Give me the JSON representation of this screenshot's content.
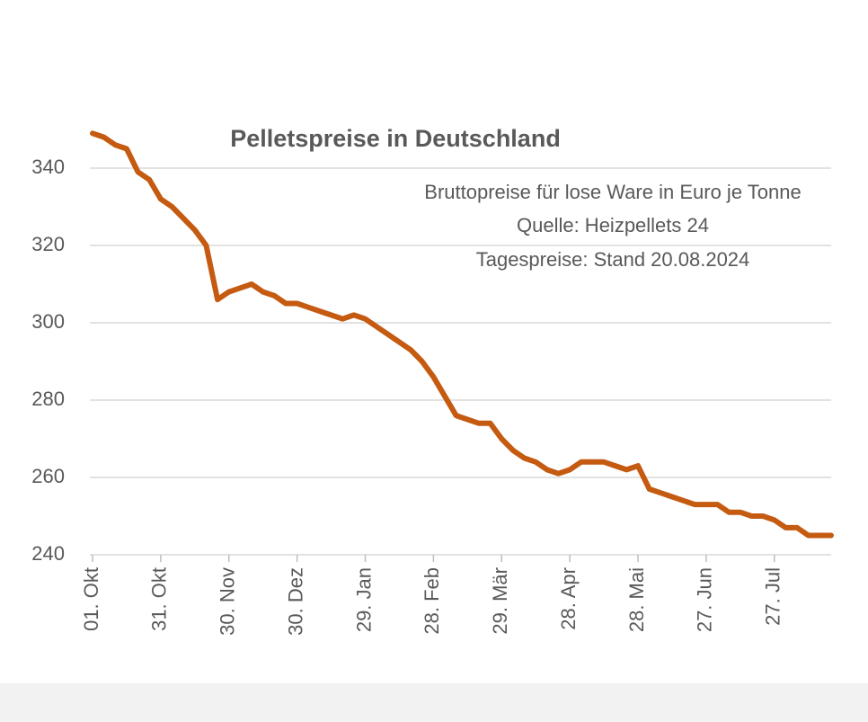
{
  "chart_data": {
    "type": "line",
    "title": "Pelletspreise in Deutschland",
    "subtitle": [
      "Bruttopreise für lose Ware in Euro je Tonne",
      "Quelle: Heizpellets 24",
      "Tagespreise: Stand 20.08.2024"
    ],
    "categories": [
      "01. Okt",
      null,
      null,
      null,
      null,
      null,
      "31. Okt",
      null,
      null,
      null,
      null,
      null,
      "30. Nov",
      null,
      null,
      null,
      null,
      null,
      "30. Dez",
      null,
      null,
      null,
      null,
      null,
      "29. Jan",
      null,
      null,
      null,
      null,
      null,
      "28. Feb",
      null,
      null,
      null,
      null,
      null,
      "29. Mär",
      null,
      null,
      null,
      null,
      null,
      "28. Apr",
      null,
      null,
      null,
      null,
      null,
      "28. Mai",
      null,
      null,
      null,
      null,
      null,
      "27. Jun",
      null,
      null,
      null,
      null,
      null,
      "27. Jul",
      null,
      null,
      null,
      null,
      null
    ],
    "series": [
      {
        "name": "Pelletspreis",
        "color": "#c55a11",
        "values": [
          349,
          348,
          346,
          345,
          339,
          337,
          332,
          330,
          327,
          324,
          320,
          306,
          308,
          309,
          310,
          308,
          307,
          305,
          305,
          304,
          303,
          302,
          301,
          302,
          301,
          299,
          297,
          295,
          293,
          290,
          286,
          281,
          276,
          275,
          274,
          274,
          270,
          267,
          265,
          264,
          262,
          261,
          262,
          264,
          264,
          264,
          263,
          262,
          263,
          257,
          256,
          255,
          254,
          253,
          253,
          253,
          251,
          251,
          250,
          250,
          249,
          247,
          247,
          245,
          245,
          245
        ]
      }
    ],
    "ylim": [
      240,
      350
    ],
    "yticks": [
      240,
      260,
      280,
      300,
      320,
      340
    ],
    "grid": true
  }
}
